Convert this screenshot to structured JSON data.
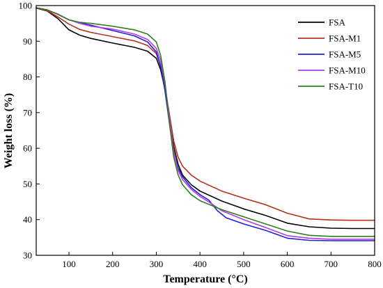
{
  "chart_data": {
    "type": "line",
    "title": "",
    "xlabel": "Temperature (°C)",
    "ylabel": "Weight loss (%)",
    "xlim": [
      25,
      800
    ],
    "ylim": [
      30,
      100
    ],
    "xticks": [
      100,
      200,
      300,
      400,
      500,
      600,
      700,
      800
    ],
    "yticks": [
      30,
      40,
      50,
      60,
      70,
      80,
      90,
      100
    ],
    "grid": false,
    "legend_position": "top-right",
    "series": [
      {
        "name": "FSA",
        "color": "#000000",
        "points": [
          [
            25,
            99.3
          ],
          [
            50,
            98.5
          ],
          [
            75,
            96.3
          ],
          [
            100,
            93.2
          ],
          [
            125,
            91.7
          ],
          [
            150,
            90.8
          ],
          [
            200,
            89.5
          ],
          [
            250,
            88.3
          ],
          [
            280,
            87.2
          ],
          [
            300,
            85.2
          ],
          [
            310,
            82.0
          ],
          [
            320,
            76.5
          ],
          [
            330,
            68.5
          ],
          [
            340,
            60.5
          ],
          [
            350,
            55.5
          ],
          [
            360,
            52.5
          ],
          [
            380,
            49.8
          ],
          [
            400,
            48.0
          ],
          [
            450,
            45.2
          ],
          [
            500,
            43.0
          ],
          [
            550,
            41.2
          ],
          [
            600,
            39.0
          ],
          [
            650,
            38.0
          ],
          [
            700,
            37.6
          ],
          [
            750,
            37.5
          ],
          [
            800,
            37.5
          ]
        ]
      },
      {
        "name": "FSA-M1",
        "color": "#b5301e",
        "points": [
          [
            25,
            99.4
          ],
          [
            50,
            98.6
          ],
          [
            75,
            96.8
          ],
          [
            100,
            94.8
          ],
          [
            125,
            93.3
          ],
          [
            150,
            92.5
          ],
          [
            200,
            91.3
          ],
          [
            250,
            90.1
          ],
          [
            280,
            88.8
          ],
          [
            300,
            86.5
          ],
          [
            310,
            83.0
          ],
          [
            320,
            77.0
          ],
          [
            330,
            69.5
          ],
          [
            340,
            62.0
          ],
          [
            350,
            57.5
          ],
          [
            360,
            55.0
          ],
          [
            380,
            52.5
          ],
          [
            400,
            50.8
          ],
          [
            450,
            48.0
          ],
          [
            500,
            46.0
          ],
          [
            550,
            44.2
          ],
          [
            600,
            41.8
          ],
          [
            650,
            40.2
          ],
          [
            700,
            39.9
          ],
          [
            750,
            39.8
          ],
          [
            800,
            39.8
          ]
        ]
      },
      {
        "name": "FSA-M5",
        "color": "#1f1fd6",
        "points": [
          [
            25,
            99.4
          ],
          [
            50,
            98.8
          ],
          [
            75,
            97.5
          ],
          [
            100,
            96.0
          ],
          [
            125,
            95.2
          ],
          [
            150,
            94.5
          ],
          [
            200,
            93.0
          ],
          [
            250,
            91.5
          ],
          [
            280,
            89.8
          ],
          [
            300,
            87.0
          ],
          [
            310,
            83.0
          ],
          [
            320,
            76.0
          ],
          [
            330,
            67.0
          ],
          [
            340,
            59.0
          ],
          [
            350,
            54.5
          ],
          [
            360,
            52.0
          ],
          [
            380,
            49.0
          ],
          [
            400,
            47.0
          ],
          [
            420,
            45.5
          ],
          [
            440,
            42.5
          ],
          [
            460,
            40.5
          ],
          [
            500,
            38.8
          ],
          [
            550,
            37.0
          ],
          [
            600,
            34.8
          ],
          [
            650,
            34.2
          ],
          [
            700,
            34.1
          ],
          [
            750,
            34.1
          ],
          [
            800,
            34.1
          ]
        ]
      },
      {
        "name": "FSA-M10",
        "color": "#b33be6",
        "points": [
          [
            25,
            99.4
          ],
          [
            50,
            98.8
          ],
          [
            75,
            97.6
          ],
          [
            100,
            96.0
          ],
          [
            125,
            95.0
          ],
          [
            150,
            94.2
          ],
          [
            200,
            93.4
          ],
          [
            250,
            92.0
          ],
          [
            280,
            90.5
          ],
          [
            300,
            88.0
          ],
          [
            310,
            84.5
          ],
          [
            320,
            78.0
          ],
          [
            330,
            68.5
          ],
          [
            340,
            59.0
          ],
          [
            350,
            53.8
          ],
          [
            360,
            51.2
          ],
          [
            380,
            48.5
          ],
          [
            400,
            46.5
          ],
          [
            420,
            45.0
          ],
          [
            450,
            42.5
          ],
          [
            500,
            40.0
          ],
          [
            550,
            37.8
          ],
          [
            600,
            35.5
          ],
          [
            650,
            34.8
          ],
          [
            700,
            34.5
          ],
          [
            750,
            34.5
          ],
          [
            800,
            34.5
          ]
        ]
      },
      {
        "name": "FSA-T10",
        "color": "#2f7d1e",
        "points": [
          [
            25,
            99.4
          ],
          [
            50,
            98.8
          ],
          [
            75,
            97.5
          ],
          [
            100,
            96.0
          ],
          [
            125,
            95.3
          ],
          [
            150,
            95.0
          ],
          [
            200,
            94.2
          ],
          [
            250,
            93.2
          ],
          [
            280,
            92.0
          ],
          [
            300,
            89.8
          ],
          [
            310,
            86.0
          ],
          [
            320,
            78.5
          ],
          [
            330,
            67.0
          ],
          [
            340,
            57.5
          ],
          [
            350,
            52.5
          ],
          [
            360,
            49.8
          ],
          [
            380,
            47.0
          ],
          [
            400,
            45.3
          ],
          [
            450,
            42.8
          ],
          [
            500,
            40.8
          ],
          [
            550,
            38.8
          ],
          [
            600,
            36.8
          ],
          [
            650,
            35.6
          ],
          [
            700,
            35.3
          ],
          [
            750,
            35.3
          ],
          [
            800,
            35.3
          ]
        ]
      }
    ]
  }
}
